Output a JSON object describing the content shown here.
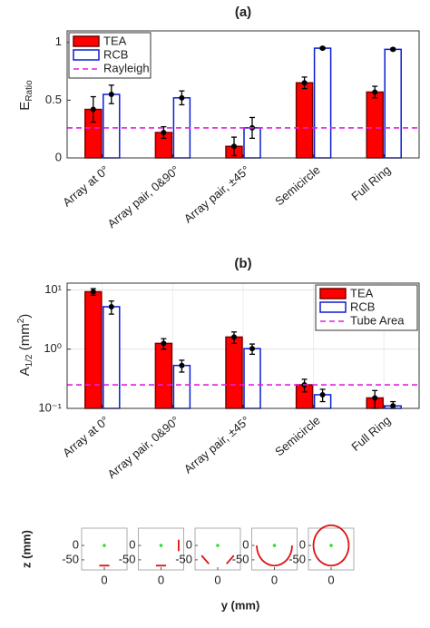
{
  "chart_data": [
    {
      "type": "bar",
      "title": "(a)",
      "ylabel": {
        "base": "E",
        "sub": "Ratio"
      },
      "categories": [
        "Array at 0°",
        "Array pair, 0&90°",
        "Array pair, ±45°",
        "Semicircle",
        "Full Ring"
      ],
      "series": [
        {
          "name": "TEA",
          "color": "#ff0000",
          "edgecolor": "#7a0000",
          "values": [
            0.42,
            0.22,
            0.1,
            0.65,
            0.57
          ],
          "errors": [
            0.11,
            0.05,
            0.08,
            0.05,
            0.05
          ]
        },
        {
          "name": "RCB",
          "color": "#ffffff",
          "edgecolor": "#0a1ed0",
          "values": [
            0.55,
            0.52,
            0.26,
            0.95,
            0.94
          ],
          "errors": [
            0.08,
            0.06,
            0.09,
            0.01,
            0.01
          ]
        }
      ],
      "hline": {
        "name": "Rayleigh",
        "value": 0.26,
        "color": "#e020e0"
      },
      "ylim": [
        0,
        1.1
      ],
      "yticks": [
        0,
        0.5,
        1
      ],
      "grid": false,
      "log_y": false,
      "legend": "upper left"
    },
    {
      "type": "bar",
      "title": "(b)",
      "ylabel": {
        "base": "A",
        "sub": "1/2",
        "rest": " (mm",
        "sup": "2",
        "end": ")"
      },
      "categories": [
        "Array at 0°",
        "Array pair, 0&90°",
        "Array pair, ±45°",
        "Semicircle",
        "Full Ring"
      ],
      "series": [
        {
          "name": "TEA",
          "color": "#ff0000",
          "edgecolor": "#7a0000",
          "values": [
            9.3,
            1.25,
            1.6,
            0.25,
            0.15
          ],
          "errors": [
            1.2,
            0.25,
            0.35,
            0.06,
            0.05
          ]
        },
        {
          "name": "RCB",
          "color": "#ffffff",
          "edgecolor": "#0a1ed0",
          "values": [
            5.2,
            0.53,
            1.02,
            0.17,
            0.11
          ],
          "errors": [
            1.3,
            0.12,
            0.2,
            0.04,
            0.02
          ]
        }
      ],
      "hline": {
        "name": "Tube Area",
        "value": 0.25,
        "color": "#e020e0"
      },
      "ylim": [
        0.1,
        13
      ],
      "yticks": [
        {
          "value": 0.1,
          "label": "10⁻¹"
        },
        {
          "value": 1,
          "label": "10⁰"
        },
        {
          "value": 10,
          "label": "10¹"
        }
      ],
      "grid": true,
      "log_y": true,
      "legend": "upper right"
    },
    {
      "type": "geometry",
      "xlabel": "y (mm)",
      "ylabel": "z (mm)",
      "xlim": [
        -90,
        90
      ],
      "ylim": [
        -85,
        60
      ],
      "xticks": [
        0
      ],
      "yticks": [
        0,
        -50
      ],
      "source": [
        0,
        0
      ],
      "color": "#dd1111",
      "source_color": "#33dd33",
      "panels": [
        {
          "lines": [
            [
              -20,
              -70,
              20,
              -70
            ]
          ]
        },
        {
          "lines": [
            [
              -20,
              -70,
              20,
              -70
            ],
            [
              70,
              -20,
              70,
              20
            ]
          ]
        },
        {
          "lines": [
            [
              -64,
              -35,
              -35,
              -64
            ],
            [
              35,
              -64,
              64,
              -35
            ]
          ]
        },
        {
          "arc": {
            "r": 70,
            "start": 180,
            "end": 360
          }
        },
        {
          "arc": {
            "r": 70,
            "start": 0,
            "end": 360
          }
        }
      ]
    }
  ]
}
